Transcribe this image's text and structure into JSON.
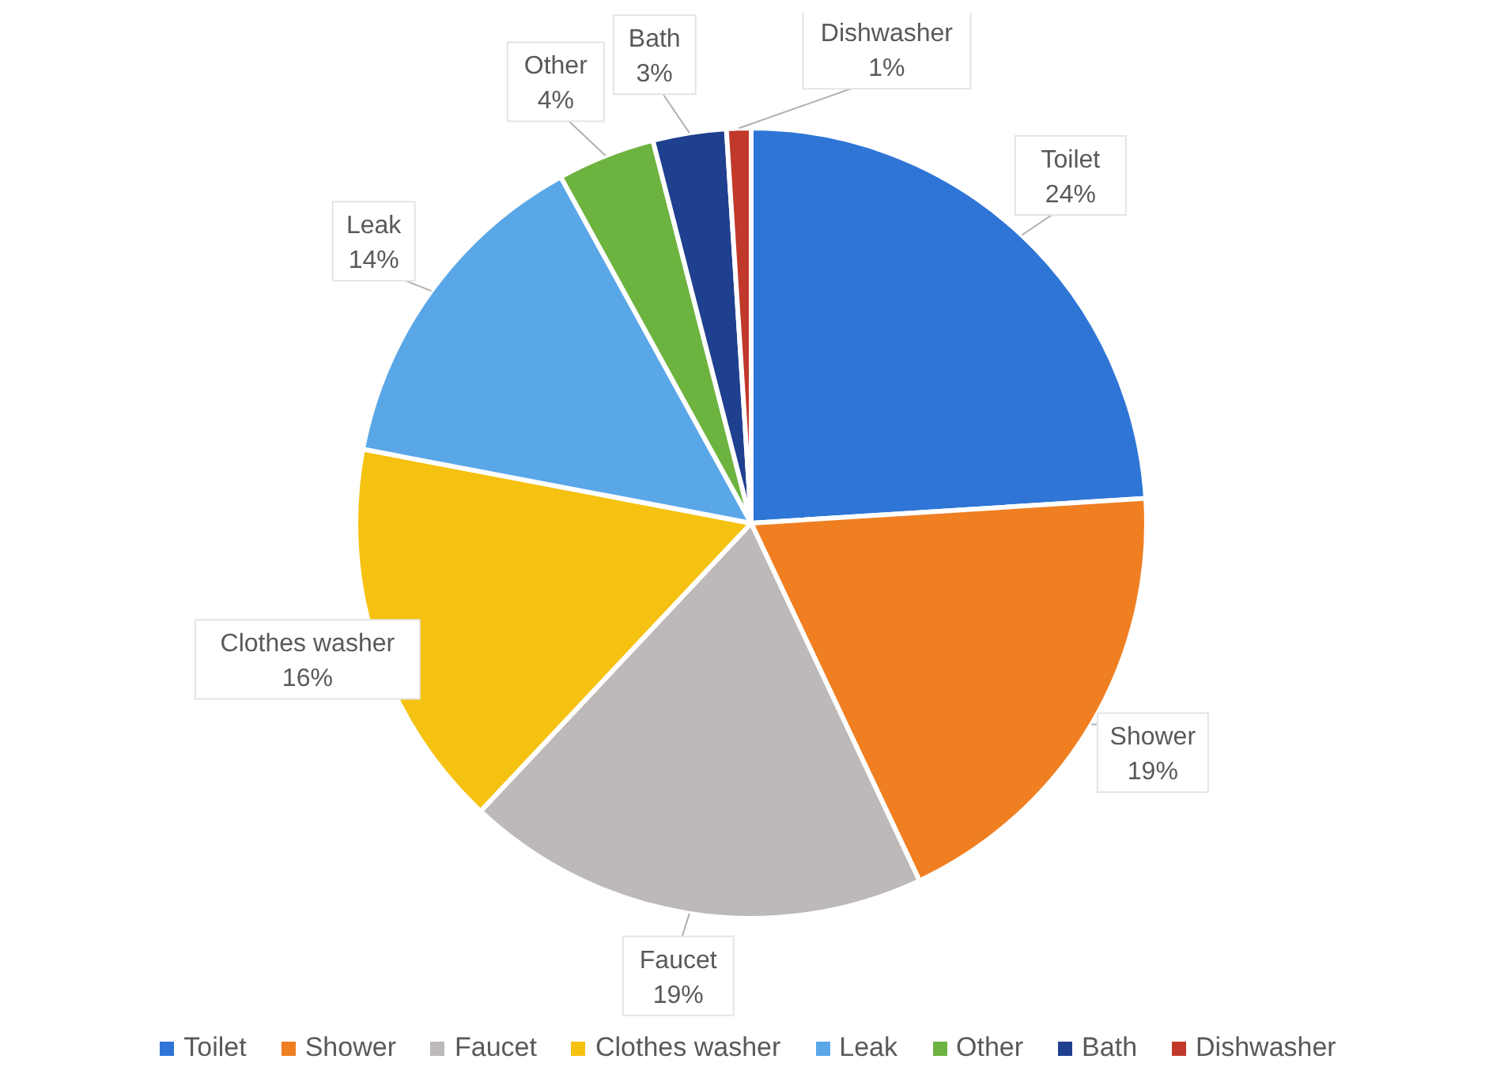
{
  "chart_data": {
    "type": "pie",
    "categories": [
      "Toilet",
      "Shower",
      "Faucet",
      "Clothes washer",
      "Leak",
      "Other",
      "Bath",
      "Dishwasher"
    ],
    "values": [
      24,
      19,
      19,
      16,
      14,
      4,
      3,
      1
    ],
    "value_labels": [
      "24%",
      "19%",
      "19%",
      "16%",
      "14%",
      "4%",
      "3%",
      "1%"
    ],
    "colors": [
      "#2e75d6",
      "#f07f22",
      "#bdb9b9",
      "#f5c211",
      "#5aa7e8",
      "#6db33f",
      "#1f3f8f",
      "#c0392b"
    ],
    "legend": "bottom"
  }
}
